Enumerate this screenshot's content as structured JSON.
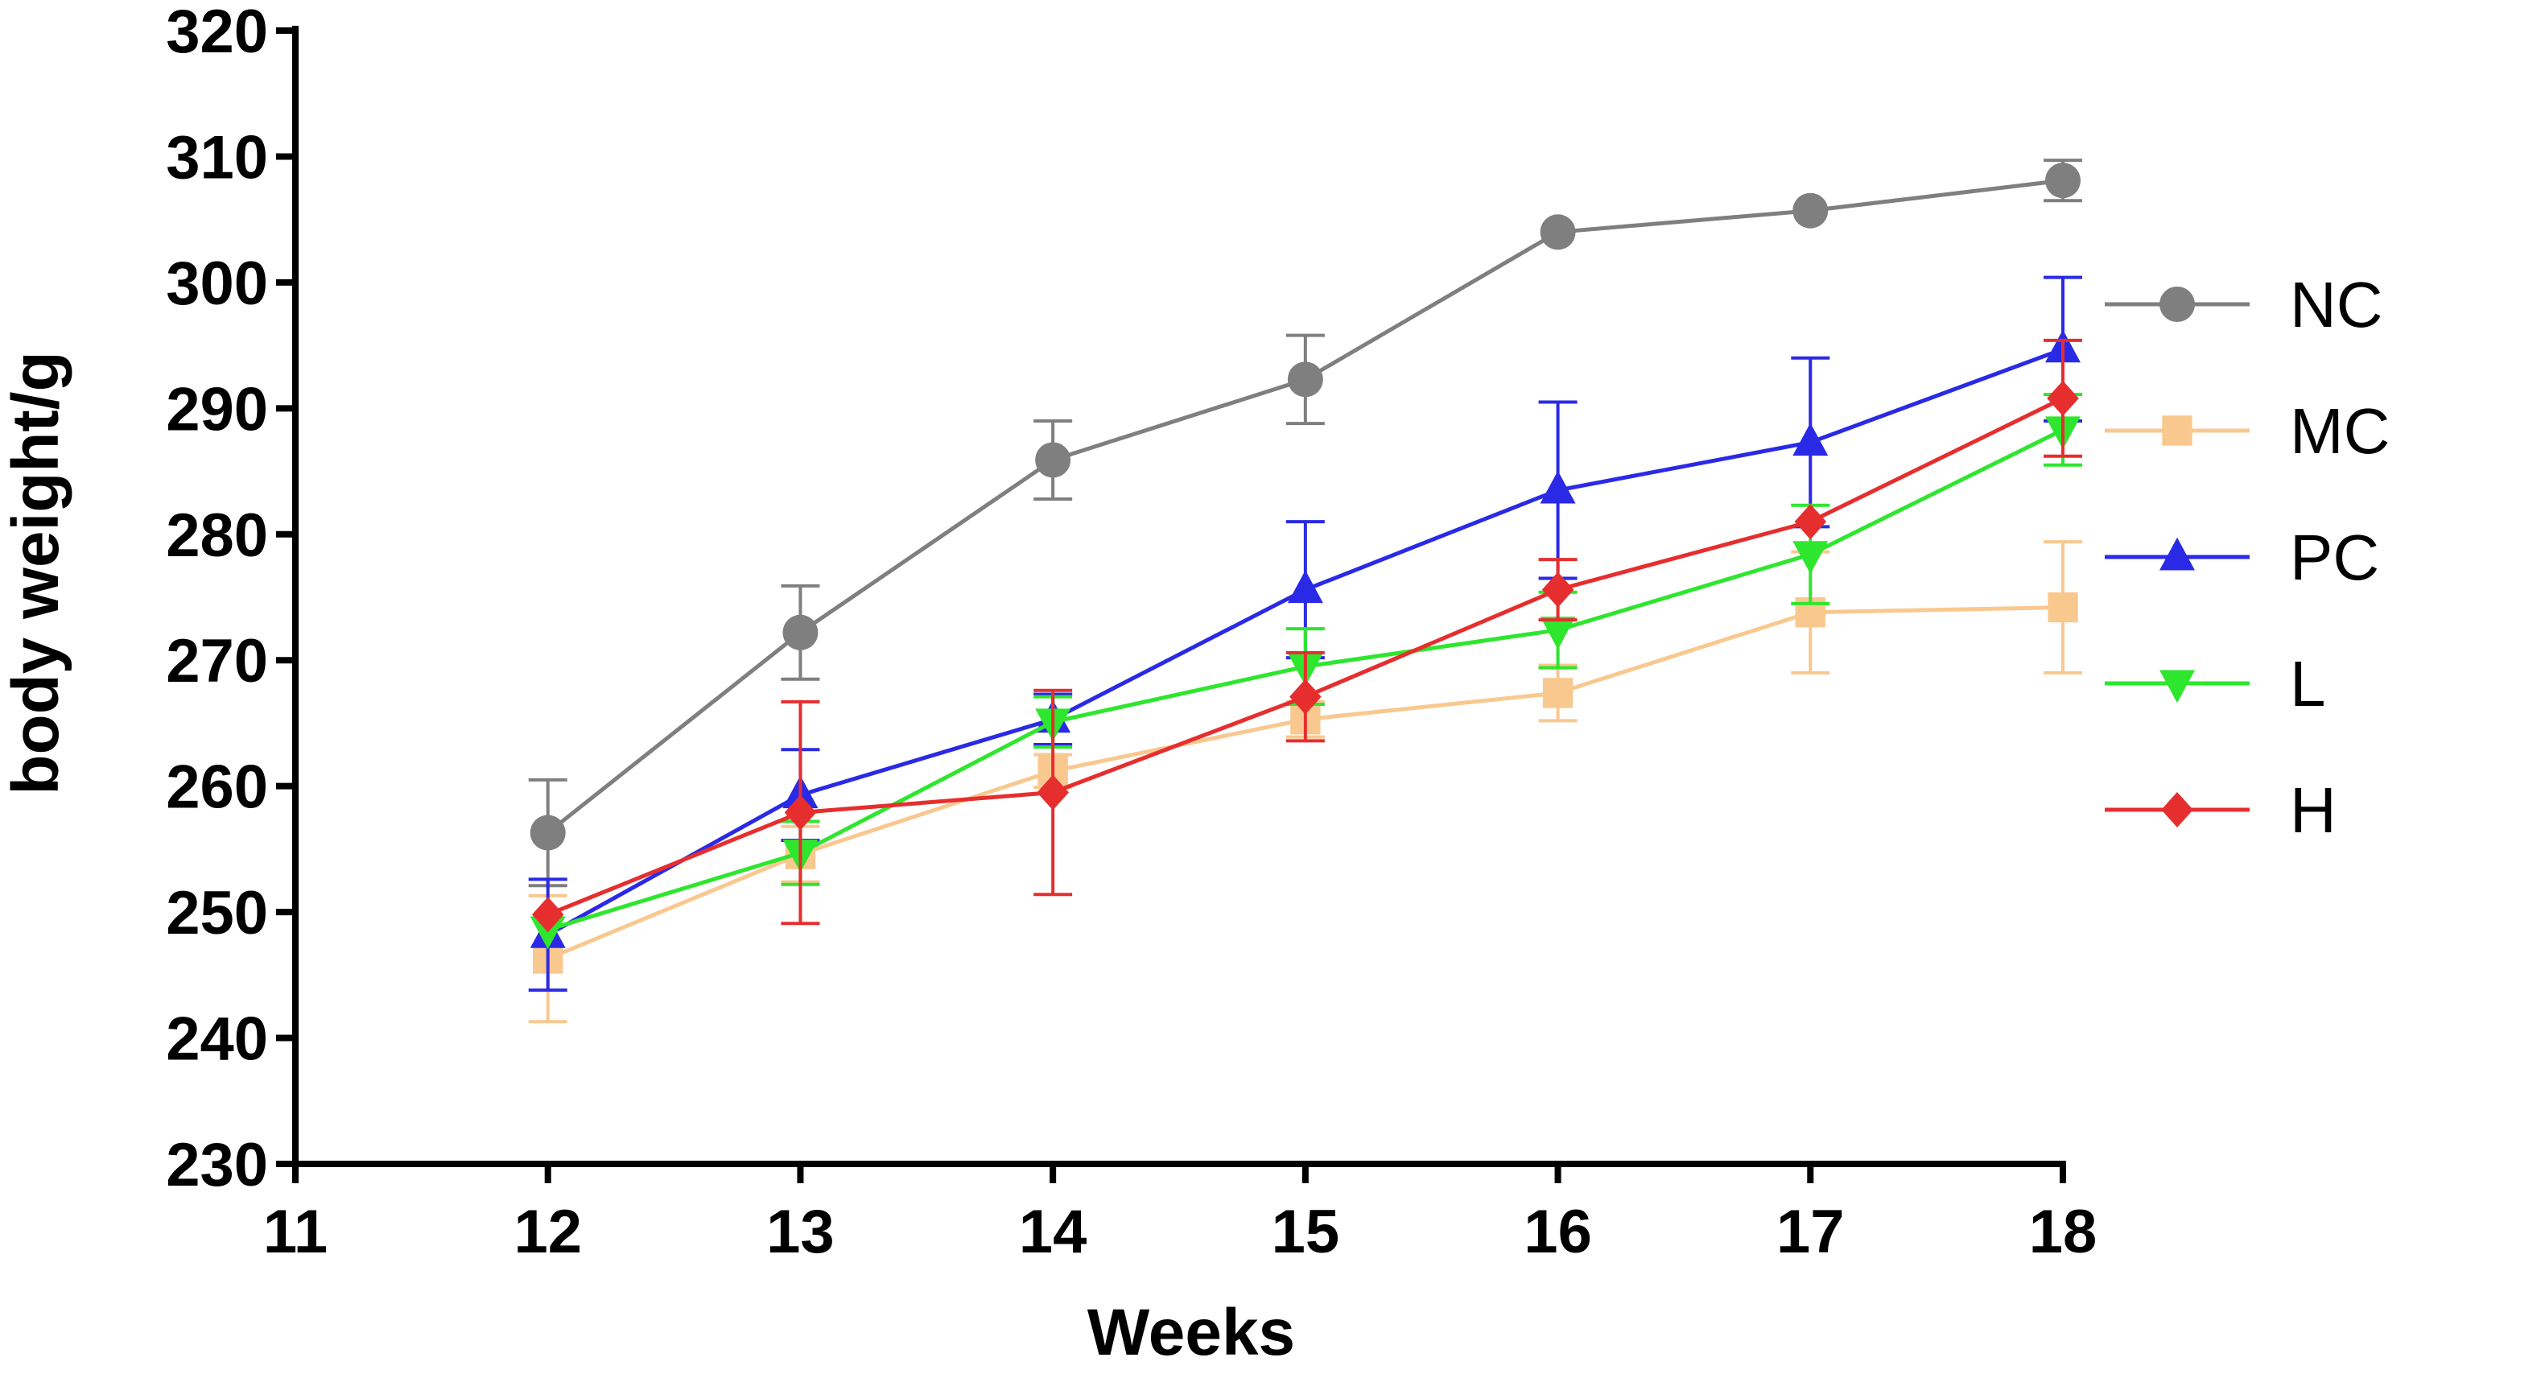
{
  "chart_data": {
    "type": "line",
    "title": "",
    "xlabel": "Weeks",
    "ylabel": "body weight/g",
    "xlim": [
      11,
      18
    ],
    "ylim": [
      230,
      320
    ],
    "x_ticks": [
      "11",
      "12",
      "13",
      "14",
      "15",
      "16",
      "17",
      "18"
    ],
    "y_ticks": [
      "230",
      "240",
      "250",
      "260",
      "270",
      "280",
      "290",
      "300",
      "310",
      "320"
    ],
    "x": [
      12,
      13,
      14,
      15,
      16,
      17,
      18
    ],
    "grid": false,
    "legend_position": "right",
    "series": [
      {
        "name": "NC",
        "color": "#7f7f7f",
        "marker": "circle",
        "values": [
          256.3,
          272.2,
          285.9,
          292.3,
          304.0,
          305.7,
          308.1
        ],
        "errors": [
          4.2,
          3.7,
          3.1,
          3.5,
          0,
          0,
          1.6
        ]
      },
      {
        "name": "MC",
        "color": "#f9c88f",
        "marker": "square",
        "values": [
          246.3,
          254.6,
          261.2,
          265.3,
          267.4,
          273.8,
          274.2
        ],
        "errors": [
          5.0,
          2.2,
          1.3,
          1.4,
          2.2,
          4.8,
          5.2
        ]
      },
      {
        "name": "PC",
        "color": "#2a2ae6",
        "marker": "triangle-up",
        "values": [
          248.2,
          259.3,
          265.3,
          275.6,
          283.5,
          287.3,
          294.7
        ],
        "errors": [
          4.4,
          3.6,
          2.0,
          5.4,
          7.0,
          6.7,
          5.7
        ]
      },
      {
        "name": "L",
        "color": "#2ee62e",
        "marker": "triangle-down",
        "values": [
          248.6,
          254.7,
          265.1,
          269.5,
          272.4,
          278.4,
          288.3
        ],
        "errors": [
          0,
          2.5,
          2.0,
          3.0,
          3.0,
          3.9,
          2.8
        ]
      },
      {
        "name": "H",
        "color": "#e62e2e",
        "marker": "diamond",
        "values": [
          249.8,
          257.9,
          259.5,
          267.1,
          275.6,
          281.0,
          290.8
        ],
        "errors": [
          0,
          8.8,
          8.1,
          3.5,
          2.4,
          0,
          4.6
        ]
      }
    ]
  }
}
